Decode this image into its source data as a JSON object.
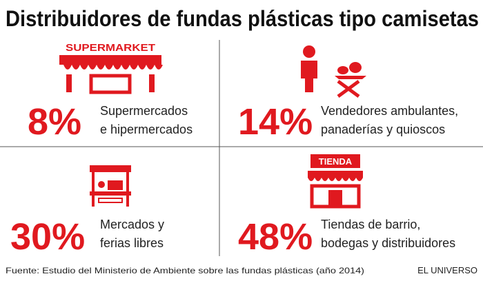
{
  "header": {
    "title": "Distribuidores de fundas plásticas tipo camisetas"
  },
  "items": [
    {
      "percent": "8%",
      "label_lines": [
        "Supermercados",
        "e hipermercados"
      ],
      "icon_text": "SUPERMARKET"
    },
    {
      "percent": "14%",
      "label_lines": [
        "Vendedores ambulantes,",
        "panaderías y quioscos"
      ]
    },
    {
      "percent": "30%",
      "label_lines": [
        "Mercados y",
        "ferias libres"
      ]
    },
    {
      "percent": "48%",
      "label_lines": [
        "Tiendas de barrio,",
        "bodegas y distribuidores"
      ],
      "icon_text": "TIENDA"
    }
  ],
  "footer": {
    "source": "Fuente: Estudio del Ministerio de Ambiente sobre las fundas plásticas (año 2014)",
    "brand": "EL UNIVERSO"
  }
}
